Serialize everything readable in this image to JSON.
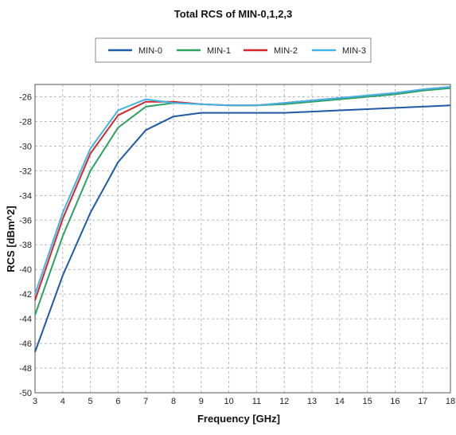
{
  "chart_data": {
    "type": "line",
    "title": "Total RCS of MIN-0,1,2,3",
    "xlabel": "Frequency [GHz]",
    "ylabel": "RCS [dBm^2]",
    "xlim": [
      3,
      18
    ],
    "ylim": [
      -50,
      -25
    ],
    "x_ticks": [
      3,
      4,
      5,
      6,
      7,
      8,
      9,
      10,
      11,
      12,
      13,
      14,
      15,
      16,
      17,
      18
    ],
    "y_ticks": [
      -26,
      -28,
      -30,
      -32,
      -34,
      -36,
      -38,
      -40,
      -42,
      -44,
      -46,
      -48,
      -50
    ],
    "grid": true,
    "legend_position": "top",
    "x": [
      3,
      4,
      5,
      6,
      7,
      8,
      9,
      10,
      11,
      12,
      13,
      14,
      15,
      16,
      17,
      18
    ],
    "series": [
      {
        "name": "MIN-0",
        "color": "#1f5aa6",
        "values": [
          -46.7,
          -40.5,
          -35.4,
          -31.3,
          -28.7,
          -27.6,
          -27.3,
          -27.3,
          -27.3,
          -27.3,
          -27.2,
          -27.1,
          -27.0,
          -26.9,
          -26.8,
          -26.7
        ]
      },
      {
        "name": "MIN-1",
        "color": "#2ca25f",
        "values": [
          -43.7,
          -37.3,
          -32.0,
          -28.5,
          -26.8,
          -26.5,
          -26.6,
          -26.7,
          -26.7,
          -26.6,
          -26.4,
          -26.2,
          -26.0,
          -25.8,
          -25.5,
          -25.3
        ]
      },
      {
        "name": "MIN-2",
        "color": "#d62728",
        "values": [
          -42.5,
          -35.9,
          -30.6,
          -27.5,
          -26.4,
          -26.4,
          -26.6,
          -26.7,
          -26.7,
          -26.5,
          -26.3,
          -26.1,
          -25.9,
          -25.7,
          -25.4,
          -25.2
        ]
      },
      {
        "name": "MIN-3",
        "color": "#3fb4e8",
        "values": [
          -42.0,
          -35.4,
          -30.2,
          -27.1,
          -26.2,
          -26.5,
          -26.6,
          -26.7,
          -26.7,
          -26.5,
          -26.3,
          -26.1,
          -25.9,
          -25.7,
          -25.4,
          -25.2
        ]
      }
    ]
  }
}
